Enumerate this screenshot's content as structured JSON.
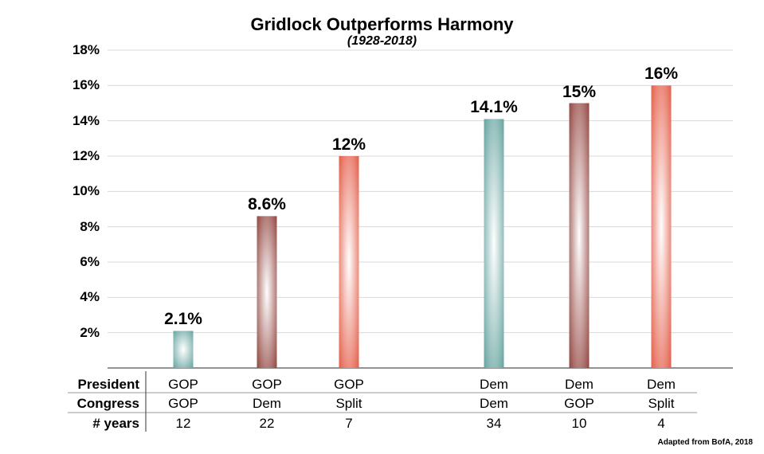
{
  "chart_data": {
    "type": "bar",
    "title": "Gridlock Outperforms Harmony",
    "subtitle": "(1928-2018)",
    "ylim": [
      0,
      18
    ],
    "yticks": [
      2,
      4,
      6,
      8,
      10,
      12,
      14,
      16,
      18
    ],
    "ytick_labels": [
      "2%",
      "4%",
      "6%",
      "8%",
      "10%",
      "12%",
      "14%",
      "16%",
      "18%"
    ],
    "grid": true,
    "categories": [
      "GOP / GOP",
      "GOP / Dem",
      "GOP / Split",
      "Dem / Dem",
      "Dem / GOP",
      "Dem / Split"
    ],
    "values": [
      2.1,
      8.6,
      12,
      14.1,
      15,
      16
    ],
    "data_labels": [
      "2.1%",
      "8.6%",
      "12%",
      "14.1%",
      "15%",
      "16%"
    ],
    "bar_colors": [
      "#5b9e9a",
      "#8b3a34",
      "#e2533d",
      "#5b9e9a",
      "#8b3a34",
      "#e2533d"
    ],
    "table": {
      "row_headers": [
        "President",
        "Congress",
        "# years"
      ],
      "president": [
        "GOP",
        "GOP",
        "GOP",
        "Dem",
        "Dem",
        "Dem"
      ],
      "congress": [
        "GOP",
        "Dem",
        "Split",
        "Dem",
        "GOP",
        "Split"
      ],
      "years": [
        "12",
        "22",
        "7",
        "34",
        "10",
        "4"
      ]
    },
    "source": "Adapted from BofA, 2018"
  }
}
